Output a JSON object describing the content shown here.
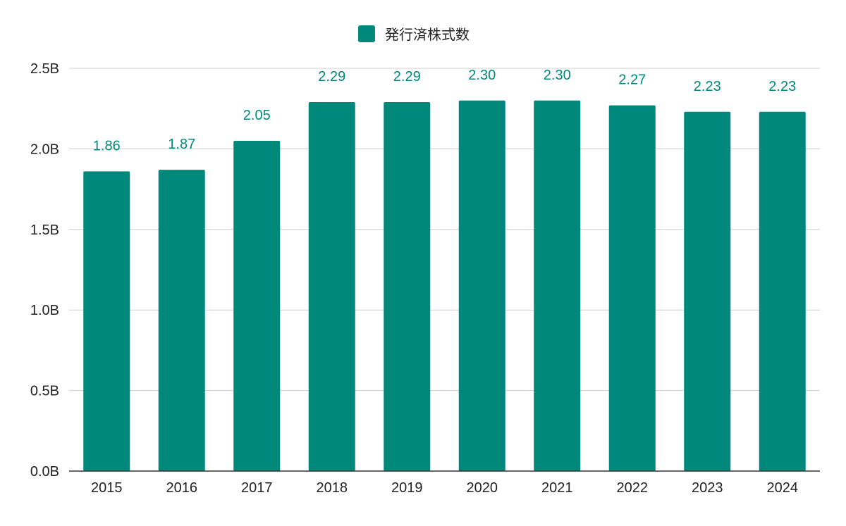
{
  "chart_data": {
    "type": "bar",
    "title": "",
    "xlabel": "",
    "ylabel": "",
    "categories": [
      "2015",
      "2016",
      "2017",
      "2018",
      "2019",
      "2020",
      "2021",
      "2022",
      "2023",
      "2024"
    ],
    "series": [
      {
        "name": "発行済株式数",
        "values": [
          1.86,
          1.87,
          2.05,
          2.29,
          2.29,
          2.3,
          2.3,
          2.27,
          2.23,
          2.23
        ],
        "labels": [
          "1.86",
          "1.87",
          "2.05",
          "2.29",
          "2.29",
          "2.30",
          "2.30",
          "2.27",
          "2.23",
          "2.23"
        ],
        "color": "#00897b"
      }
    ],
    "ylim": [
      0,
      2.5
    ],
    "yticks": [
      0,
      0.5,
      1.0,
      1.5,
      2.0,
      2.5
    ],
    "ytick_labels": [
      "0.0B",
      "0.5B",
      "1.0B",
      "1.5B",
      "2.0B",
      "2.5B"
    ],
    "value_unit": "B",
    "grid": true,
    "legend_position": "top-center"
  }
}
